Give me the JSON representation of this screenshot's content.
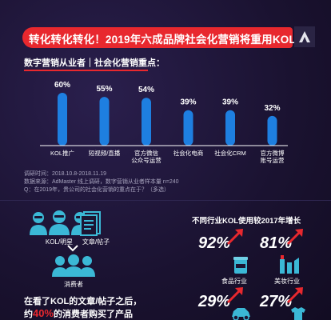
{
  "header": {
    "title": "转化转化转化！2019年六成品牌社会化营销将重用KOL"
  },
  "chart_section": {
    "subtitle": "数字营销从业者｜社会化营销重点："
  },
  "chart_data": {
    "type": "bar",
    "categories": [
      "KOL推广",
      "短视频/直播",
      "官方微信公众号运营",
      "社会化电商",
      "社会化CRM",
      "官方微博账号运营"
    ],
    "category_lines": [
      [
        "KOL推广"
      ],
      [
        "短视频/直播"
      ],
      [
        "官方微信",
        "公众号运营"
      ],
      [
        "社会化电商"
      ],
      [
        "社会化CRM"
      ],
      [
        "官方微博",
        "账号运营"
      ]
    ],
    "values": [
      60,
      55,
      54,
      39,
      39,
      32
    ],
    "value_labels": [
      "60%",
      "55%",
      "54%",
      "39%",
      "39%",
      "32%"
    ],
    "ylim": [
      0,
      60
    ],
    "grid": false,
    "bar_color": "#1e7fe0"
  },
  "notes": {
    "line1": "调研时间：2018.10.8-2018.11.19",
    "line2": "数据来源：AdMaster 线上调研，数字营销从业者样本量 n=240",
    "line3": "Q：在2019年，贵公司的社会化营销的重点在于？（多选）"
  },
  "left_panel": {
    "kol_label": "KOL/明星",
    "content_label": "文章/帖子",
    "consumer_label": "消费者",
    "text1": "在看了KOL的文章/帖子之后，",
    "text2_pre": "约",
    "text2_highlight": "40%",
    "text2_post": "的消费者购买了产品"
  },
  "right_panel": {
    "title": "不同行业KOL使用较2017年增长",
    "stats": [
      {
        "value": "92%",
        "label": "食品行业"
      },
      {
        "value": "81%",
        "label": "美妆行业"
      },
      {
        "value": "29%",
        "label": ""
      },
      {
        "value": "27%",
        "label": ""
      }
    ]
  },
  "colors": {
    "accent": "#e8282e",
    "bar": "#1e7fe0",
    "background": "#1c1533"
  }
}
